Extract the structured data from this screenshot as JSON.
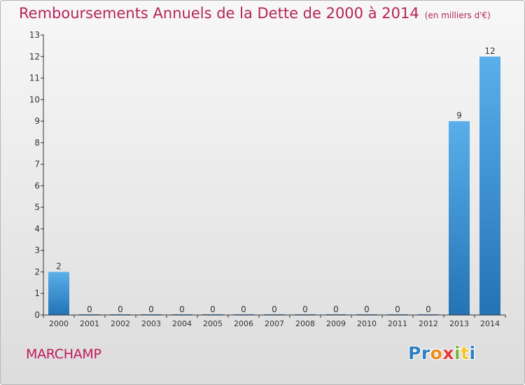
{
  "chart_data": {
    "type": "bar",
    "title": "Remboursements Annuels de la Dette de 2000 à 2014",
    "unit_note": "(en milliers d'€)",
    "categories": [
      "2000",
      "2001",
      "2002",
      "2003",
      "2004",
      "2005",
      "2006",
      "2007",
      "2008",
      "2009",
      "2010",
      "2011",
      "2012",
      "2013",
      "2014"
    ],
    "values": [
      2,
      0,
      0,
      0,
      0,
      0,
      0,
      0,
      0,
      0,
      0,
      0,
      0,
      9,
      12
    ],
    "xlabel": "",
    "ylabel": "",
    "ylim": [
      0,
      13
    ],
    "yticks": [
      0,
      1,
      2,
      3,
      4,
      5,
      6,
      7,
      8,
      9,
      10,
      11,
      12,
      13
    ],
    "grid": false,
    "bar_color": "#3a8fd4"
  },
  "commune": "MARCHAMP",
  "logo": {
    "letters": [
      {
        "char": "P",
        "color": "#2f7fc2"
      },
      {
        "char": "r",
        "color": "#2f7fc2"
      },
      {
        "char": "o",
        "color": "#f08a1c"
      },
      {
        "char": "x",
        "color": "#e53935"
      },
      {
        "char": "i",
        "color": "#7cb342"
      },
      {
        "char": "t",
        "color": "#f4c430"
      },
      {
        "char": "i",
        "color": "#2f7fc2"
      }
    ]
  }
}
